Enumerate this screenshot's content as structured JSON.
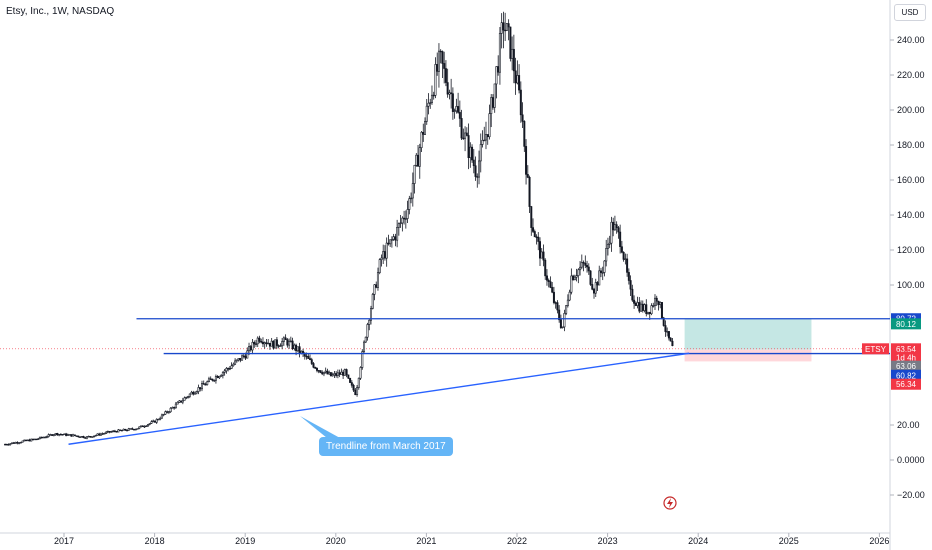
{
  "header": {
    "symbol_title": "Etsy, Inc., 1W, NASDAQ",
    "currency": "USD"
  },
  "colors": {
    "candle": "#131722",
    "horizontal_line": "#1848cc",
    "trendline": "#2962ff",
    "callout_bg": "#64b5f6",
    "profit_zone": "#b2dfdb",
    "loss_zone": "#ffcdd2",
    "price_dotted": "#f23645"
  },
  "annotation": {
    "callout_text": "Trendline from March 2017",
    "alert_icon": "lightning-alert-icon"
  },
  "chart_data": {
    "type": "candlestick",
    "x_unit": "year",
    "y_unit": "USD",
    "yticks": [
      "240.00",
      "220.00",
      "200.00",
      "180.00",
      "160.00",
      "140.00",
      "120.00",
      "100.00",
      "20.00",
      "0.0000",
      "−20.00"
    ],
    "ytick_values": [
      240,
      220,
      200,
      180,
      160,
      140,
      120,
      100,
      20,
      0,
      -20
    ],
    "xticks": [
      "2017",
      "2018",
      "2019",
      "2020",
      "2021",
      "2022",
      "2023",
      "2024",
      "2025",
      "2026"
    ],
    "xtick_values": [
      2017,
      2018,
      2019,
      2020,
      2021,
      2022,
      2023,
      2024,
      2025,
      2026
    ],
    "xlim": [
      2016.35,
      2026.1
    ],
    "ylim": [
      -30,
      262
    ],
    "price_path": [
      [
        2016.35,
        9
      ],
      [
        2016.7,
        12
      ],
      [
        2016.9,
        15
      ],
      [
        2017.1,
        14
      ],
      [
        2017.25,
        13
      ],
      [
        2017.5,
        16
      ],
      [
        2017.8,
        18
      ],
      [
        2018.0,
        22
      ],
      [
        2018.2,
        30
      ],
      [
        2018.4,
        38
      ],
      [
        2018.6,
        45
      ],
      [
        2018.8,
        52
      ],
      [
        2019.0,
        60
      ],
      [
        2019.15,
        70
      ],
      [
        2019.3,
        66
      ],
      [
        2019.45,
        68
      ],
      [
        2019.6,
        62
      ],
      [
        2019.8,
        52
      ],
      [
        2019.95,
        48
      ],
      [
        2020.1,
        50
      ],
      [
        2020.15,
        44
      ],
      [
        2020.22,
        38
      ],
      [
        2020.35,
        78
      ],
      [
        2020.5,
        115
      ],
      [
        2020.65,
        128
      ],
      [
        2020.8,
        145
      ],
      [
        2020.95,
        185
      ],
      [
        2021.05,
        210
      ],
      [
        2021.15,
        228
      ],
      [
        2021.3,
        205
      ],
      [
        2021.45,
        180
      ],
      [
        2021.55,
        165
      ],
      [
        2021.7,
        195
      ],
      [
        2021.85,
        250
      ],
      [
        2021.92,
        238
      ],
      [
        2022.05,
        200
      ],
      [
        2022.15,
        138
      ],
      [
        2022.3,
        110
      ],
      [
        2022.4,
        92
      ],
      [
        2022.5,
        75
      ],
      [
        2022.6,
        105
      ],
      [
        2022.75,
        112
      ],
      [
        2022.85,
        98
      ],
      [
        2022.95,
        110
      ],
      [
        2023.05,
        135
      ],
      [
        2023.15,
        125
      ],
      [
        2023.25,
        95
      ],
      [
        2023.35,
        88
      ],
      [
        2023.45,
        85
      ],
      [
        2023.55,
        94
      ],
      [
        2023.65,
        72
      ],
      [
        2023.72,
        63.54
      ]
    ],
    "horizontal_lines": [
      {
        "value": 80.72,
        "x_start": 2017.8
      },
      {
        "value": 60.82,
        "x_start": 2018.1
      }
    ],
    "trendline": {
      "x0": 2017.05,
      "y0": 9,
      "x1": 2023.9,
      "y1": 61
    },
    "position": {
      "x_start": 2023.85,
      "x_end": 2025.25,
      "entry": 63.06,
      "target": 80.72,
      "stop": 56.34
    },
    "current_price_line": 63.54,
    "price_badges": [
      {
        "label": "80.72",
        "value": 80.72,
        "color": "#1848cc"
      },
      {
        "label": "80.12",
        "value": 77.8,
        "color": "#089981"
      },
      {
        "label": "ETSY",
        "value": 63.54,
        "color": "#f23645"
      },
      {
        "label": "63.54",
        "value": 63.54,
        "color": "#f23645"
      },
      {
        "label": "1d 4h",
        "value": 58.7,
        "color": "#f23645"
      },
      {
        "label": "63.06",
        "value": 53.6,
        "color": "#787b86"
      },
      {
        "label": "60.82",
        "value": 48.4,
        "color": "#1848cc"
      },
      {
        "label": "56.34",
        "value": 43.3,
        "color": "#f23645"
      }
    ]
  }
}
